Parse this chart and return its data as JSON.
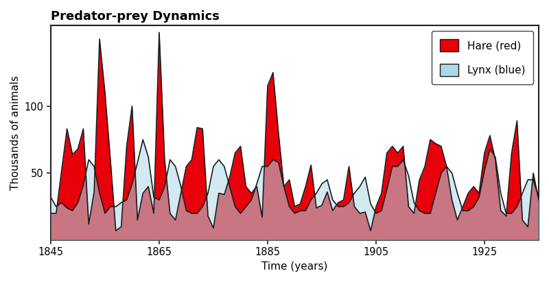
{
  "title": "Predator-prey Dynamics",
  "xlabel": "Time (years)",
  "ylabel": "Thousands of animals",
  "hare_color": "#E8000A",
  "lynx_color": "#ADD8E6",
  "edge_color": "#1a1a1a",
  "years": [
    1845,
    1846,
    1847,
    1848,
    1849,
    1850,
    1851,
    1852,
    1853,
    1854,
    1855,
    1856,
    1857,
    1858,
    1859,
    1860,
    1861,
    1862,
    1863,
    1864,
    1865,
    1866,
    1867,
    1868,
    1869,
    1870,
    1871,
    1872,
    1873,
    1874,
    1875,
    1876,
    1877,
    1878,
    1879,
    1880,
    1881,
    1882,
    1883,
    1884,
    1885,
    1886,
    1887,
    1888,
    1889,
    1890,
    1891,
    1892,
    1893,
    1894,
    1895,
    1896,
    1897,
    1898,
    1899,
    1900,
    1901,
    1902,
    1903,
    1904,
    1905,
    1906,
    1907,
    1908,
    1909,
    1910,
    1911,
    1912,
    1913,
    1914,
    1915,
    1916,
    1917,
    1918,
    1919,
    1920,
    1921,
    1922,
    1923,
    1924,
    1925,
    1926,
    1927,
    1928,
    1929,
    1930,
    1931,
    1932,
    1933,
    1934,
    1935
  ],
  "hare": [
    20,
    20,
    52,
    83,
    64,
    68,
    83,
    12,
    36,
    150,
    110,
    60,
    7,
    10,
    70,
    100,
    15,
    35,
    40,
    20,
    155,
    60,
    20,
    15,
    35,
    55,
    60,
    84,
    83,
    18,
    9,
    35,
    34,
    47,
    65,
    70,
    40,
    35,
    40,
    17,
    115,
    125,
    80,
    40,
    45,
    25,
    27,
    40,
    56,
    24,
    26,
    36,
    22,
    28,
    30,
    55,
    25,
    20,
    21,
    7,
    25,
    35,
    65,
    70,
    65,
    70,
    25,
    20,
    45,
    55,
    75,
    72,
    70,
    55,
    30,
    15,
    25,
    35,
    40,
    35,
    65,
    78,
    60,
    22,
    18,
    65,
    89,
    15,
    10,
    50,
    30
  ],
  "lynx": [
    32,
    25,
    28,
    24,
    22,
    28,
    41,
    60,
    55,
    35,
    20,
    25,
    25,
    28,
    30,
    42,
    58,
    75,
    62,
    32,
    30,
    40,
    60,
    55,
    40,
    22,
    20,
    20,
    25,
    35,
    55,
    60,
    55,
    40,
    25,
    20,
    25,
    30,
    42,
    55,
    55,
    60,
    58,
    40,
    25,
    20,
    22,
    22,
    30,
    35,
    42,
    45,
    30,
    25,
    25,
    28,
    35,
    40,
    47,
    27,
    20,
    22,
    38,
    55,
    55,
    60,
    48,
    28,
    22,
    20,
    20,
    35,
    50,
    55,
    50,
    35,
    22,
    22,
    25,
    32,
    52,
    68,
    62,
    35,
    20,
    20,
    25,
    35,
    45,
    45,
    32
  ],
  "ylim": [
    0,
    160
  ],
  "xlim": [
    1845,
    1935
  ],
  "yticks": [
    50,
    100
  ],
  "xticks": [
    1845,
    1865,
    1885,
    1905,
    1925
  ],
  "background_color": "#ffffff",
  "legend_hare": "Hare (red)",
  "legend_lynx": "Lynx (blue)",
  "title_fontsize": 13,
  "label_fontsize": 11,
  "tick_fontsize": 10.5
}
